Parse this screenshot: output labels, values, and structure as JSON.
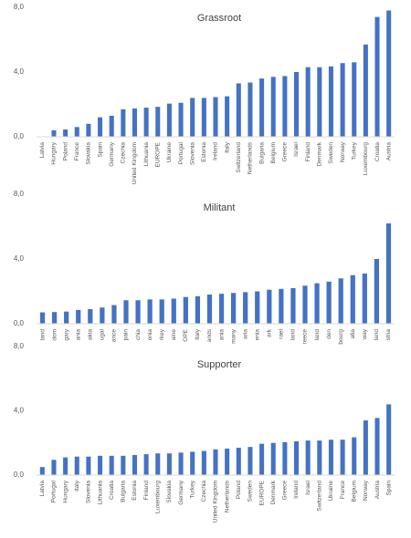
{
  "chart_data": [
    {
      "type": "bar",
      "title": "Grassroot",
      "color": "#4472c4",
      "grid": false,
      "categories": [
        "Latvia",
        "Hungary",
        "Poland",
        "France",
        "Slovakia",
        "Spain",
        "Germany",
        "Czechia",
        "United Kingdom",
        "Lithuania",
        "EUROPE",
        "Ukraine",
        "Portugal",
        "Slovenia",
        "Estonia",
        "Ireland",
        "Italy",
        "Switzerland",
        "Netherlands",
        "Bulgaria",
        "Belgium",
        "Greece",
        "Israel",
        "Finland",
        "Denmark",
        "Sweden",
        "Norway",
        "Turkey",
        "Luxembourg",
        "Croatia",
        "Austria"
      ],
      "values": [
        0,
        0.4,
        0.45,
        0.6,
        0.8,
        1.2,
        1.3,
        1.7,
        1.75,
        1.8,
        1.85,
        2.05,
        2.1,
        2.4,
        2.4,
        2.45,
        2.5,
        3.3,
        3.35,
        3.6,
        3.7,
        3.75,
        4.0,
        4.3,
        4.3,
        4.35,
        4.55,
        4.6,
        5.7,
        7.4,
        7.8
      ],
      "ylim": [
        0,
        8
      ],
      "yticks": [
        {
          "value": 0,
          "label": "0,0"
        },
        {
          "value": 4,
          "label": "4,0"
        },
        {
          "value": 8,
          "label": "8,0"
        }
      ]
    },
    {
      "type": "bar",
      "title": "Militant",
      "color": "#4472c4",
      "grid": false,
      "categories": [
        "land",
        "dom",
        "gary",
        "ania",
        "akia",
        "ugal",
        "ance",
        "pain",
        "chia",
        "onia",
        "rkey",
        "aine",
        "OPE",
        "Italy",
        "ands",
        "ania",
        "many",
        "aria",
        "enia",
        "ark",
        "rael",
        "land",
        "reece",
        "land",
        "den",
        "bourg",
        "atia",
        "way",
        "land",
        "stria"
      ],
      "values": [
        0.7,
        0.72,
        0.75,
        0.85,
        0.9,
        1.0,
        1.15,
        1.45,
        1.45,
        1.5,
        1.5,
        1.55,
        1.65,
        1.7,
        1.8,
        1.85,
        1.9,
        1.95,
        2.0,
        2.1,
        2.15,
        2.2,
        2.35,
        2.5,
        2.6,
        2.8,
        3.0,
        3.1,
        4.0,
        6.2
      ],
      "ylim": [
        0,
        8
      ],
      "yticks": [
        {
          "value": 0,
          "label": "0,0"
        },
        {
          "value": 4,
          "label": "4,0"
        },
        {
          "value": 8,
          "label": "8,0"
        }
      ]
    },
    {
      "type": "bar",
      "title": "Supporter",
      "color": "#4472c4",
      "grid": false,
      "categories": [
        "Latvia",
        "Portugal",
        "Hungary",
        "Italy",
        "Slovenia",
        "Lithuania",
        "Croatia",
        "Bulgaria",
        "Estonia",
        "Finland",
        "Luxembourg",
        "Slovakia",
        "Germany",
        "Turkey",
        "Czechia",
        "United Kingdom",
        "Netherlands",
        "Poland",
        "Sweden",
        "EUROPE",
        "Denmark",
        "Greece",
        "Ireland",
        "Israel",
        "Switzerland",
        "Ukraine",
        "France",
        "Belgium",
        "Norway",
        "Austria",
        "Spain"
      ],
      "values": [
        0.5,
        0.95,
        1.1,
        1.15,
        1.15,
        1.2,
        1.2,
        1.2,
        1.25,
        1.3,
        1.35,
        1.35,
        1.4,
        1.45,
        1.5,
        1.6,
        1.65,
        1.7,
        1.75,
        1.95,
        2.0,
        2.05,
        2.1,
        2.15,
        2.15,
        2.2,
        2.2,
        2.35,
        3.4,
        3.55,
        4.4
      ],
      "ylim": [
        0,
        8
      ],
      "yticks": [
        {
          "value": 0,
          "label": "0,0"
        },
        {
          "value": 4,
          "label": "4,0"
        },
        {
          "value": 8,
          "label": "8,0"
        }
      ]
    }
  ]
}
